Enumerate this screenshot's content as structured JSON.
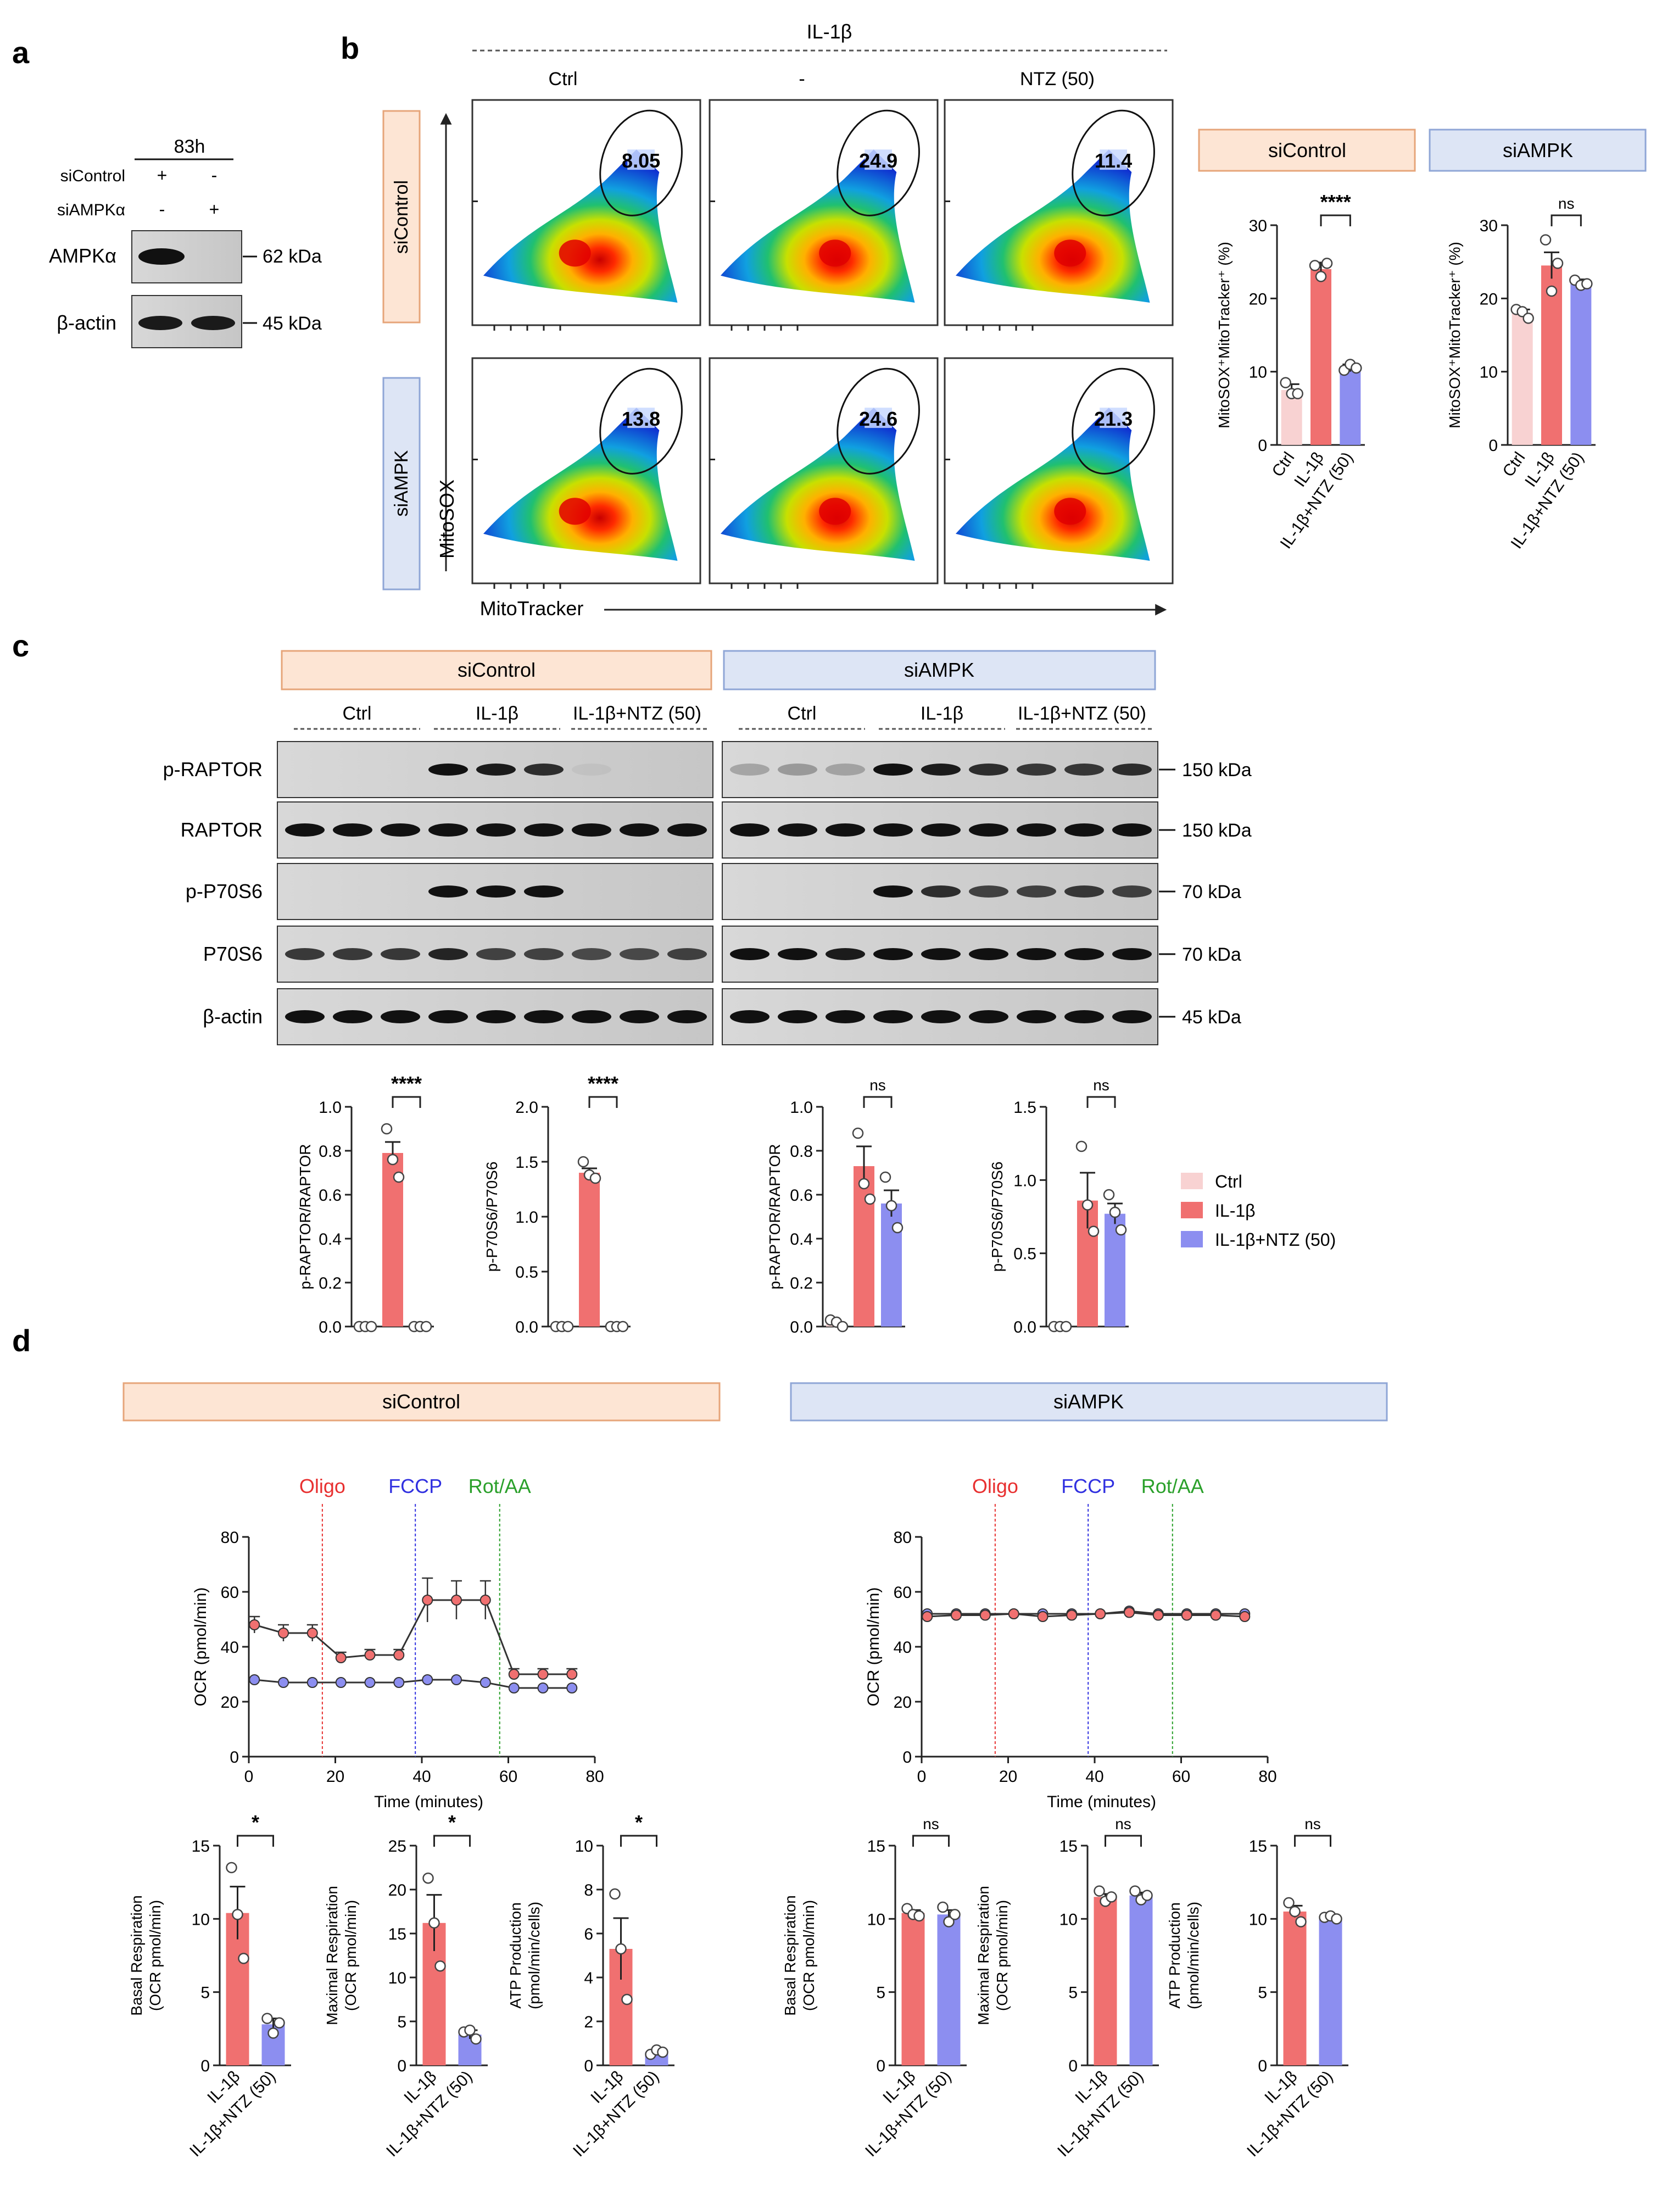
{
  "colors": {
    "ctrl": "#f8d2d2",
    "il1b": "#f07070",
    "ntz": "#8c8ef0",
    "siControl_bg": "#fde5d4",
    "siControl_border": "#e6a57a",
    "siAMPK_bg": "#dde5f5",
    "siAMPK_border": "#8fa6d6",
    "oligo": "#e83030",
    "fccp": "#3030e0",
    "rot": "#2aa02a"
  },
  "panel_a": {
    "label": "a",
    "time": "83h",
    "rows": [
      {
        "label": "siControl",
        "marks": [
          "+",
          "-"
        ]
      },
      {
        "label": "siAMPKα",
        "marks": [
          "-",
          "+"
        ]
      }
    ],
    "blots": [
      {
        "label": "AMPKα",
        "kda": "62 kDa"
      },
      {
        "label": "β-actin",
        "kda": "45 kDa"
      }
    ]
  },
  "panel_b": {
    "label": "b",
    "treatment": "IL-1β",
    "columns": [
      "Ctrl",
      "-",
      "NTZ (50)"
    ],
    "rows": [
      "siControl",
      "siAMPK"
    ],
    "gates": [
      [
        "8.05",
        "24.9",
        "11.4"
      ],
      [
        "13.8",
        "24.6",
        "21.3"
      ]
    ],
    "xaxis": "MitoTracker",
    "yaxis": "MitoSOX",
    "bar_titles": [
      "siControl",
      "siAMPK"
    ],
    "ylabel": "MitoSOX⁺MitoTracker⁺ (%)",
    "categories": [
      "Ctrl",
      "IL-1β",
      "IL-1β+NTZ (50)"
    ],
    "sig": [
      "****",
      "ns"
    ]
  },
  "panel_c": {
    "label": "c",
    "groups": [
      "siControl",
      "siAMPK"
    ],
    "lanes": [
      "Ctrl",
      "IL-1β",
      "IL-1β+NTZ (50)"
    ],
    "blots": [
      {
        "label": "p-RAPTOR",
        "kda": "150 kDa"
      },
      {
        "label": "RAPTOR",
        "kda": "150 kDa"
      },
      {
        "label": "p-P70S6",
        "kda": "70 kDa"
      },
      {
        "label": "P70S6",
        "kda": "70 kDa"
      },
      {
        "label": "β-actin",
        "kda": "45 kDa"
      }
    ],
    "legend": [
      "Ctrl",
      "IL-1β",
      "IL-1β+NTZ (50)"
    ],
    "sig": [
      "****",
      "****",
      "ns",
      "ns"
    ]
  },
  "panel_d": {
    "label": "d",
    "groups": [
      "siControl",
      "siAMPK"
    ],
    "injections": [
      "Oligo",
      "FCCP",
      "Rot/AA"
    ],
    "ylabel": "OCR (pmol/min)",
    "xlabel": "Time (minutes)",
    "bar_categories": [
      "IL-1β",
      "IL-1β+NTZ (50)"
    ],
    "bar_ylabels": [
      [
        "Basal Respiration",
        "(OCR pmol/min)"
      ],
      [
        "Maximal Respiration",
        "(OCR pmol/min)"
      ],
      [
        "ATP Production",
        "(pmol/min/cells)"
      ]
    ],
    "sig_siControl": [
      "*",
      "*",
      "*"
    ],
    "sig_siAMPK": [
      "ns",
      "ns",
      "ns"
    ]
  },
  "chart_data": [
    {
      "type": "bar",
      "id": "b_siControl",
      "title": "siControl",
      "ylabel": "MitoSOX⁺MitoTracker⁺ (%)",
      "categories": [
        "Ctrl",
        "IL-1β",
        "IL-1β+NTZ (50)"
      ],
      "values": [
        7.5,
        24.0,
        10.5
      ],
      "errors": [
        0.8,
        0.9,
        0.5
      ],
      "ylim": [
        0,
        30
      ],
      "ticks": [
        0,
        10,
        20,
        30
      ],
      "points": [
        [
          8.5,
          7.0,
          7.0
        ],
        [
          24.5,
          23.0,
          24.8
        ],
        [
          10.2,
          11.0,
          10.5
        ]
      ],
      "sig": {
        "a": 1,
        "b": 2,
        "text": "****"
      }
    },
    {
      "type": "bar",
      "id": "b_siAMPK",
      "title": "siAMPK",
      "ylabel": "MitoSOX⁺MitoTracker⁺ (%)",
      "categories": [
        "Ctrl",
        "IL-1β",
        "IL-1β+NTZ (50)"
      ],
      "values": [
        18.0,
        24.5,
        22.0
      ],
      "errors": [
        0.5,
        1.8,
        0.6
      ],
      "ylim": [
        0,
        30
      ],
      "ticks": [
        0,
        10,
        20,
        30
      ],
      "points": [
        [
          18.5,
          18.2,
          17.3
        ],
        [
          28.0,
          21.0,
          24.8
        ],
        [
          22.5,
          21.8,
          22.0
        ]
      ],
      "sig": {
        "a": 1,
        "b": 2,
        "text": "ns"
      }
    },
    {
      "type": "bar",
      "id": "c_raptor_siControl",
      "ylabel": "p-RAPTOR/RAPTOR",
      "categories": [
        "Ctrl",
        "IL-1β",
        "IL-1β+NTZ (50)"
      ],
      "values": [
        0.0,
        0.79,
        0.0
      ],
      "errors": [
        0.0,
        0.05,
        0.0
      ],
      "ylim": [
        0,
        1.0
      ],
      "ticks": [
        0,
        0.2,
        0.4,
        0.6,
        0.8,
        1.0
      ],
      "points": [
        [
          0,
          0,
          0
        ],
        [
          0.9,
          0.76,
          0.68
        ],
        [
          0,
          0,
          0
        ]
      ],
      "sig": {
        "a": 1,
        "b": 2,
        "text": "****"
      }
    },
    {
      "type": "bar",
      "id": "c_p70_siControl",
      "ylabel": "p-P70S6/P70S6",
      "categories": [
        "Ctrl",
        "IL-1β",
        "IL-1β+NTZ (50)"
      ],
      "values": [
        0.0,
        1.4,
        0.0
      ],
      "errors": [
        0.0,
        0.04,
        0.0
      ],
      "ylim": [
        0,
        2.0
      ],
      "ticks": [
        0,
        0.5,
        1.0,
        1.5,
        2.0
      ],
      "points": [
        [
          0,
          0,
          0
        ],
        [
          1.5,
          1.38,
          1.35
        ],
        [
          0,
          0,
          0
        ]
      ],
      "sig": {
        "a": 1,
        "b": 2,
        "text": "****"
      }
    },
    {
      "type": "bar",
      "id": "c_raptor_siAMPK",
      "ylabel": "p-RAPTOR/RAPTOR",
      "categories": [
        "Ctrl",
        "IL-1β",
        "IL-1β+NTZ (50)"
      ],
      "values": [
        0.01,
        0.73,
        0.56
      ],
      "errors": [
        0.01,
        0.09,
        0.06
      ],
      "ylim": [
        0,
        1.0
      ],
      "ticks": [
        0,
        0.2,
        0.4,
        0.6,
        0.8,
        1.0
      ],
      "points": [
        [
          0.03,
          0.02,
          0.0
        ],
        [
          0.88,
          0.65,
          0.58
        ],
        [
          0.68,
          0.55,
          0.45
        ]
      ],
      "sig": {
        "a": 1,
        "b": 2,
        "text": "ns"
      }
    },
    {
      "type": "bar",
      "id": "c_p70_siAMPK",
      "ylabel": "p-P70S6/P70S6",
      "categories": [
        "Ctrl",
        "IL-1β",
        "IL-1β+NTZ (50)"
      ],
      "values": [
        0.0,
        0.86,
        0.77
      ],
      "errors": [
        0.0,
        0.19,
        0.07
      ],
      "ylim": [
        0,
        1.5
      ],
      "ticks": [
        0,
        0.5,
        1.0,
        1.5
      ],
      "points": [
        [
          0,
          0,
          0
        ],
        [
          1.23,
          0.83,
          0.65
        ],
        [
          0.9,
          0.78,
          0.66
        ]
      ],
      "sig": {
        "a": 1,
        "b": 2,
        "text": "ns"
      }
    },
    {
      "type": "line",
      "id": "d_siControl_ocr",
      "title": "siControl",
      "xlabel": "Time (minutes)",
      "ylabel": "OCR (pmol/min)",
      "xlim": [
        0,
        80
      ],
      "ylim": [
        0,
        80
      ],
      "xticks": [
        0,
        20,
        40,
        60,
        80
      ],
      "yticks": [
        0,
        20,
        40,
        60,
        80
      ],
      "vlines": [
        {
          "x": 17,
          "label": "Oligo",
          "key": "oligo"
        },
        {
          "x": 38.5,
          "label": "FCCP",
          "key": "fccp"
        },
        {
          "x": 58,
          "label": "Rot/AA",
          "key": "rot"
        }
      ],
      "series": [
        {
          "name": "IL-1β",
          "color": "il1b",
          "x": [
            1.3,
            8,
            14.7,
            21.3,
            28,
            34.7,
            41.3,
            48,
            54.7,
            61.3,
            68,
            74.7
          ],
          "y": [
            48,
            45,
            45,
            36,
            37,
            37,
            57,
            57,
            57,
            30,
            30,
            30
          ],
          "err": [
            3,
            3,
            3,
            2,
            2,
            2,
            8,
            7,
            7,
            2,
            2,
            2
          ]
        },
        {
          "name": "IL-1β+NTZ (50)",
          "color": "ntz",
          "x": [
            1.3,
            8,
            14.7,
            21.3,
            28,
            34.7,
            41.3,
            48,
            54.7,
            61.3,
            68,
            74.7
          ],
          "y": [
            28,
            27,
            27,
            27,
            27,
            27,
            28,
            28,
            27,
            25,
            25,
            25
          ],
          "err": [
            0.5,
            0.5,
            0.5,
            0.5,
            0.5,
            0.5,
            0.5,
            0.5,
            0.5,
            0.5,
            0.5,
            0.5
          ]
        }
      ]
    },
    {
      "type": "line",
      "id": "d_siAMPK_ocr",
      "title": "siAMPK",
      "xlabel": "Time (minutes)",
      "ylabel": "OCR (pmol/min)",
      "xlim": [
        0,
        80
      ],
      "ylim": [
        0,
        80
      ],
      "xticks": [
        0,
        20,
        40,
        60,
        80
      ],
      "yticks": [
        0,
        20,
        40,
        60,
        80
      ],
      "vlines": [
        {
          "x": 17,
          "label": "Oligo",
          "key": "oligo"
        },
        {
          "x": 38.5,
          "label": "FCCP",
          "key": "fccp"
        },
        {
          "x": 58,
          "label": "Rot/AA",
          "key": "rot"
        }
      ],
      "series": [
        {
          "name": "IL-1β+NTZ (50)",
          "color": "ntz",
          "x": [
            1.3,
            8,
            14.7,
            21.3,
            28,
            34.7,
            41.3,
            48,
            54.7,
            61.3,
            68,
            74.7
          ],
          "y": [
            52,
            52,
            52,
            52,
            52,
            52,
            52,
            53,
            52,
            52,
            52,
            52
          ],
          "err": [
            0.5,
            0.5,
            0.5,
            0.5,
            0.5,
            0.5,
            0.5,
            0.5,
            0.5,
            0.5,
            0.5,
            0.5
          ]
        },
        {
          "name": "IL-1β",
          "color": "il1b",
          "x": [
            1.3,
            8,
            14.7,
            21.3,
            28,
            34.7,
            41.3,
            48,
            54.7,
            61.3,
            68,
            74.7
          ],
          "y": [
            51,
            51.5,
            51.5,
            52,
            51,
            51.5,
            52,
            52.5,
            51.5,
            51.5,
            51.5,
            51
          ],
          "err": [
            0.5,
            0.5,
            0.5,
            0.5,
            0.5,
            0.5,
            0.5,
            0.5,
            0.5,
            0.5,
            0.5,
            0.5
          ]
        }
      ]
    },
    {
      "type": "bar",
      "id": "d_basal_siControl",
      "ylabel": "Basal Respiration (OCR pmol/min)",
      "categories": [
        "IL-1β",
        "IL-1β+NTZ (50)"
      ],
      "values": [
        10.4,
        2.8
      ],
      "errors": [
        1.8,
        0.4
      ],
      "ylim": [
        0,
        15
      ],
      "ticks": [
        0,
        5,
        10,
        15
      ],
      "points": [
        [
          13.5,
          10.3,
          7.3
        ],
        [
          3.2,
          2.2,
          2.9
        ]
      ],
      "sig": {
        "a": 0,
        "b": 1,
        "text": "*"
      }
    },
    {
      "type": "bar",
      "id": "d_max_siControl",
      "ylabel": "Maximal Respiration (OCR pmol/min)",
      "categories": [
        "IL-1β",
        "IL-1β+NTZ (50)"
      ],
      "values": [
        16.2,
        3.5
      ],
      "errors": [
        3.2,
        0.5
      ],
      "ylim": [
        0,
        25
      ],
      "ticks": [
        0,
        5,
        10,
        15,
        20,
        25
      ],
      "points": [
        [
          21.3,
          16.2,
          11.3
        ],
        [
          3.8,
          4.0,
          3.0
        ]
      ],
      "sig": {
        "a": 0,
        "b": 1,
        "text": "*"
      }
    },
    {
      "type": "bar",
      "id": "d_atp_siControl",
      "ylabel": "ATP Production (pmol/min/cells)",
      "categories": [
        "IL-1β",
        "IL-1β+NTZ (50)"
      ],
      "values": [
        5.3,
        0.6
      ],
      "errors": [
        1.4,
        0.1
      ],
      "ylim": [
        0,
        10
      ],
      "ticks": [
        0,
        2,
        4,
        6,
        8,
        10
      ],
      "points": [
        [
          7.8,
          5.3,
          3.0
        ],
        [
          0.5,
          0.7,
          0.6
        ]
      ],
      "sig": {
        "a": 0,
        "b": 1,
        "text": "*"
      }
    },
    {
      "type": "bar",
      "id": "d_basal_siAMPK",
      "ylabel": "Basal Respiration (OCR pmol/min)",
      "categories": [
        "IL-1β",
        "IL-1β+NTZ (50)"
      ],
      "values": [
        10.4,
        10.3
      ],
      "errors": [
        0.2,
        0.3
      ],
      "ylim": [
        0,
        15
      ],
      "ticks": [
        0,
        5,
        10,
        15
      ],
      "points": [
        [
          10.7,
          10.3,
          10.2
        ],
        [
          10.8,
          9.8,
          10.3
        ]
      ],
      "sig": {
        "a": 0,
        "b": 1,
        "text": "ns"
      }
    },
    {
      "type": "bar",
      "id": "d_max_siAMPK",
      "ylabel": "Maximal Respiration (OCR pmol/min)",
      "categories": [
        "IL-1β",
        "IL-1β+NTZ (50)"
      ],
      "values": [
        11.5,
        11.6
      ],
      "errors": [
        0.2,
        0.2
      ],
      "ylim": [
        0,
        15
      ],
      "ticks": [
        0,
        5,
        10,
        15
      ],
      "points": [
        [
          11.9,
          11.2,
          11.5
        ],
        [
          11.9,
          11.3,
          11.6
        ]
      ],
      "sig": {
        "a": 0,
        "b": 1,
        "text": "ns"
      }
    },
    {
      "type": "bar",
      "id": "d_atp_siAMPK",
      "ylabel": "ATP Production (pmol/min/cells)",
      "categories": [
        "IL-1β",
        "IL-1β+NTZ (50)"
      ],
      "values": [
        10.5,
        10.1
      ],
      "errors": [
        0.4,
        0.1
      ],
      "ylim": [
        0,
        15
      ],
      "ticks": [
        0,
        5,
        10,
        15
      ],
      "points": [
        [
          11.1,
          10.5,
          9.8
        ],
        [
          10.1,
          10.2,
          10.0
        ]
      ],
      "sig": {
        "a": 0,
        "b": 1,
        "text": "ns"
      }
    }
  ]
}
